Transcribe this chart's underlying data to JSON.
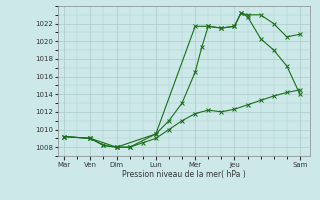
{
  "xlabel": "Pression niveau de la mer( hPa )",
  "bg_color": "#cce8e8",
  "grid_color": "#aacccc",
  "line_color": "#1a6e1a",
  "ylim": [
    1007,
    1024
  ],
  "yticks": [
    1008,
    1010,
    1012,
    1014,
    1016,
    1018,
    1020,
    1022
  ],
  "x_day_labels": [
    "Mar",
    "Ven",
    "Dim",
    "Lun",
    "Mer",
    "Jeu",
    "Sam"
  ],
  "x_day_positions": [
    0,
    2,
    4,
    7,
    10,
    13,
    18
  ],
  "series1_x": [
    0,
    2,
    3,
    4,
    5,
    7,
    8,
    9,
    10,
    10.5,
    11,
    12,
    13,
    13.5,
    14,
    15,
    16,
    17,
    18
  ],
  "series1_y": [
    1009.2,
    1009.0,
    1008.2,
    1008.0,
    1008.0,
    1009.5,
    1011.0,
    1013.0,
    1016.5,
    1019.3,
    1021.7,
    1021.5,
    1021.7,
    1023.2,
    1023.0,
    1023.0,
    1022.0,
    1020.5,
    1020.8
  ],
  "series2_x": [
    0,
    2,
    3,
    4,
    5,
    6,
    7,
    8,
    9,
    10,
    11,
    12,
    13,
    14,
    15,
    16,
    17,
    18
  ],
  "series2_y": [
    1009.2,
    1009.0,
    1008.2,
    1008.0,
    1008.0,
    1008.5,
    1009.0,
    1010.0,
    1011.0,
    1011.8,
    1012.2,
    1012.0,
    1012.3,
    1012.8,
    1013.3,
    1013.8,
    1014.2,
    1014.5
  ],
  "series3_x": [
    0,
    2,
    4,
    7,
    10,
    11,
    12,
    13,
    13.5,
    14,
    15,
    16,
    17,
    18
  ],
  "series3_y": [
    1009.2,
    1009.0,
    1008.0,
    1009.5,
    1021.7,
    1021.7,
    1021.5,
    1021.7,
    1023.2,
    1022.8,
    1020.3,
    1019.0,
    1017.2,
    1014.0
  ]
}
